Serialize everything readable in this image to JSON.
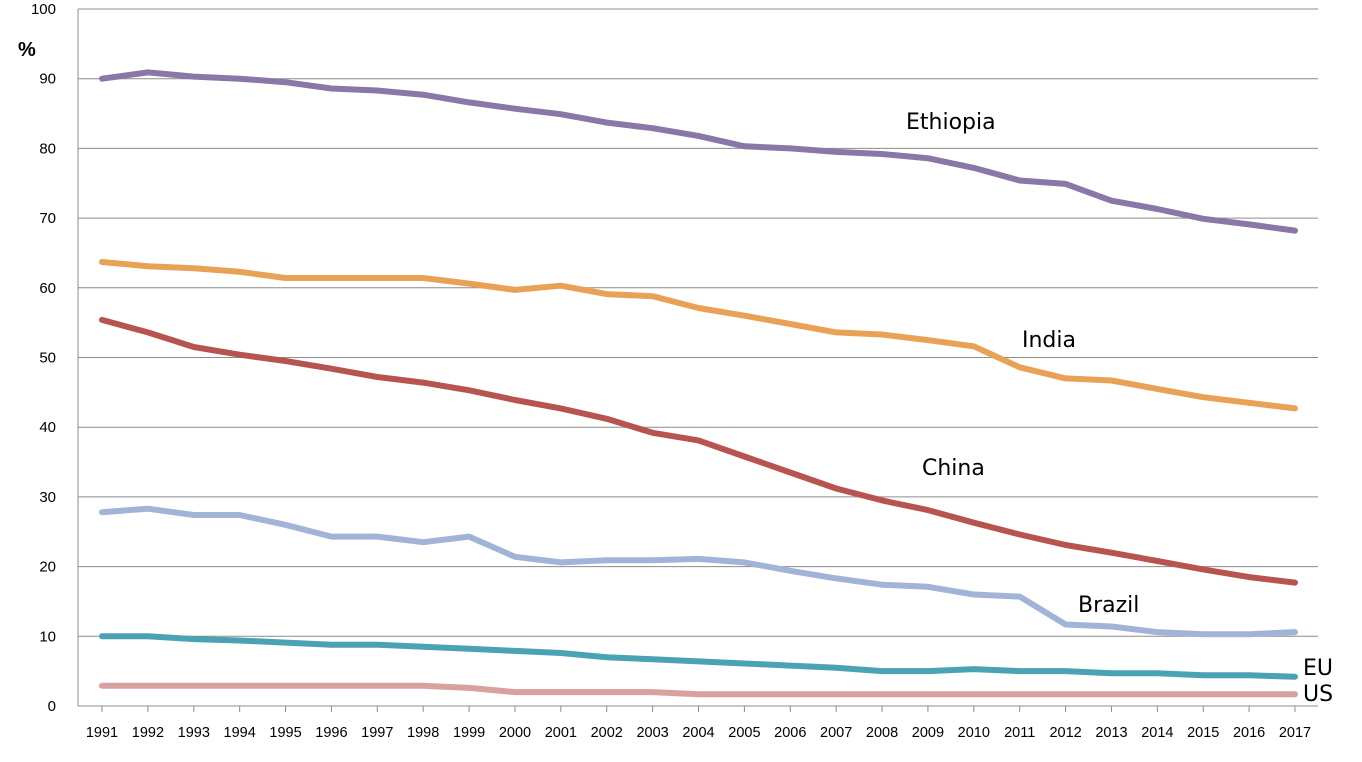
{
  "chart_data": {
    "type": "line",
    "title": "",
    "xlabel": "",
    "ylabel": "%",
    "ylim": [
      0,
      100
    ],
    "yticks": [
      0,
      10,
      20,
      30,
      40,
      50,
      60,
      70,
      80,
      90,
      100
    ],
    "grid": true,
    "legend": "none (series labelled directly on the plot)",
    "x": [
      "1991",
      "1992",
      "1993",
      "1994",
      "1995",
      "1996",
      "1997",
      "1998",
      "1999",
      "2000",
      "2001",
      "2002",
      "2003",
      "2004",
      "2005",
      "2006",
      "2007",
      "2008",
      "2009",
      "2010",
      "2011",
      "2012",
      "2013",
      "2014",
      "2015",
      "2016",
      "2017"
    ],
    "series": [
      {
        "name": "Ethiopia",
        "color": "#8a76a7",
        "values": [
          90.0,
          90.9,
          90.3,
          90.0,
          89.5,
          88.6,
          88.3,
          87.7,
          86.6,
          85.7,
          84.9,
          83.7,
          82.9,
          81.8,
          80.3,
          80.0,
          79.5,
          79.2,
          78.6,
          77.2,
          75.4,
          74.9,
          72.5,
          71.3,
          69.9,
          69.1,
          68.2
        ]
      },
      {
        "name": "India",
        "color": "#e8a155",
        "values": [
          63.7,
          63.1,
          62.8,
          62.3,
          61.4,
          61.4,
          61.4,
          61.4,
          60.6,
          59.7,
          60.3,
          59.1,
          58.8,
          57.1,
          56.0,
          54.8,
          53.6,
          53.3,
          52.5,
          51.6,
          48.6,
          47.0,
          46.7,
          45.5,
          44.3,
          43.5,
          42.7
        ]
      },
      {
        "name": "China",
        "color": "#b85450",
        "values": [
          55.4,
          53.6,
          51.5,
          50.4,
          49.5,
          48.4,
          47.2,
          46.4,
          45.3,
          43.9,
          42.7,
          41.2,
          39.2,
          38.1,
          35.8,
          33.5,
          31.2,
          29.5,
          28.1,
          26.3,
          24.6,
          23.1,
          22.0,
          20.8,
          19.6,
          18.5,
          17.7
        ]
      },
      {
        "name": "Brazil",
        "color": "#a1b4d8",
        "values": [
          27.8,
          28.3,
          27.4,
          27.4,
          26.0,
          24.3,
          24.3,
          23.5,
          24.3,
          21.4,
          20.6,
          20.9,
          20.9,
          21.1,
          20.6,
          19.4,
          18.3,
          17.4,
          17.1,
          16.0,
          15.7,
          11.7,
          11.4,
          10.6,
          10.3,
          10.3,
          10.6
        ]
      },
      {
        "name": "EU",
        "color": "#4aa3b2",
        "values": [
          10.0,
          10.0,
          9.6,
          9.4,
          9.1,
          8.8,
          8.8,
          8.5,
          8.2,
          7.9,
          7.6,
          7.0,
          6.7,
          6.4,
          6.1,
          5.8,
          5.5,
          5.0,
          5.0,
          5.3,
          5.0,
          5.0,
          4.7,
          4.7,
          4.4,
          4.4,
          4.2
        ]
      },
      {
        "name": "US",
        "color": "#d9a0a0",
        "values": [
          2.9,
          2.9,
          2.9,
          2.9,
          2.9,
          2.9,
          2.9,
          2.9,
          2.6,
          2.0,
          2.0,
          2.0,
          2.0,
          1.7,
          1.7,
          1.7,
          1.7,
          1.7,
          1.7,
          1.7,
          1.7,
          1.7,
          1.7,
          1.7,
          1.7,
          1.7,
          1.7
        ]
      }
    ]
  }
}
